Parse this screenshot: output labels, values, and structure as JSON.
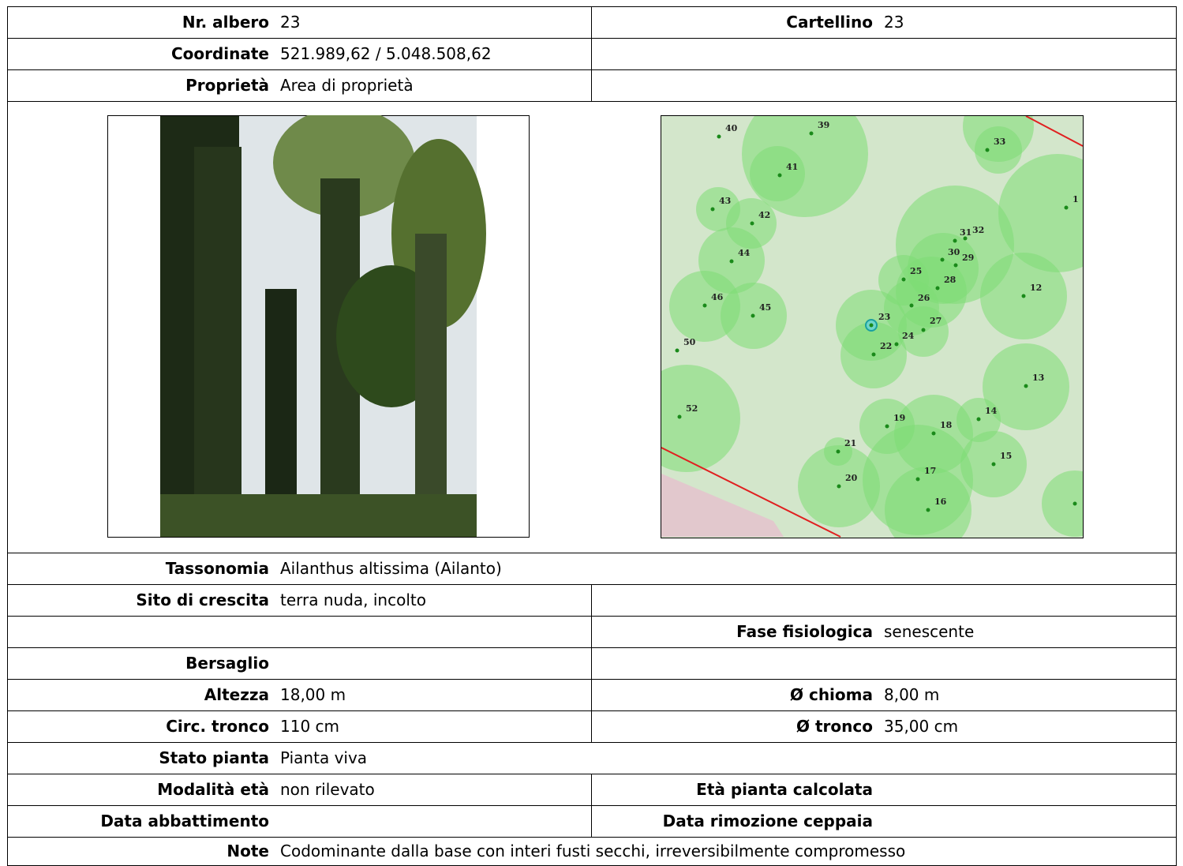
{
  "top": [
    {
      "left": {
        "label": "Nr. albero",
        "value": "23"
      },
      "right": {
        "label": "Cartellino",
        "value": "23"
      }
    },
    {
      "left": {
        "label": "Coordinate",
        "value": "521.989,62 / 5.048.508,62"
      }
    },
    {
      "left": {
        "label": "Proprietà",
        "value": "Area di proprietà"
      }
    }
  ],
  "map": {
    "tree_labels": [
      "40",
      "39",
      "33",
      "41",
      "1",
      "43",
      "42",
      "31",
      "32",
      "30",
      "29",
      "44",
      "25",
      "28",
      "12",
      "46",
      "26",
      "45",
      "23",
      "27",
      "24",
      "22",
      "50",
      "13",
      "52",
      "14",
      "19",
      "18",
      "21",
      "15",
      "17",
      "20",
      "16"
    ]
  },
  "details": [
    {
      "label": "Tassonomia",
      "value": "Ailanthus altissima (Ailanto)"
    },
    {
      "left": {
        "label": "Sito di crescita",
        "value": "terra nuda, incolto"
      }
    },
    {
      "right": {
        "label": "Fase fisiologica",
        "value": "senescente"
      }
    },
    {
      "left": {
        "label": "Bersaglio"
      }
    },
    {
      "left": {
        "label": "Altezza",
        "value": "18,00 m"
      },
      "right": {
        "label": "Ø chioma",
        "value": "8,00 m"
      }
    },
    {
      "left": {
        "label": "Circ. tronco",
        "value": "110 cm"
      },
      "right": {
        "label": "Ø tronco",
        "value": "35,00 cm"
      }
    },
    {
      "label": "Stato pianta",
      "value": "Pianta viva"
    },
    {
      "left": {
        "label": "Modalità età",
        "value": "non rilevato"
      },
      "right": {
        "label": "Età pianta calcolata"
      }
    },
    {
      "left": {
        "label": "Data abbattimento"
      },
      "right": {
        "label": "Data rimozione ceppaia"
      }
    },
    {
      "label": "Note",
      "value": "Codominante dalla base con interi fusti secchi, irreversibilmente compromesso"
    }
  ]
}
